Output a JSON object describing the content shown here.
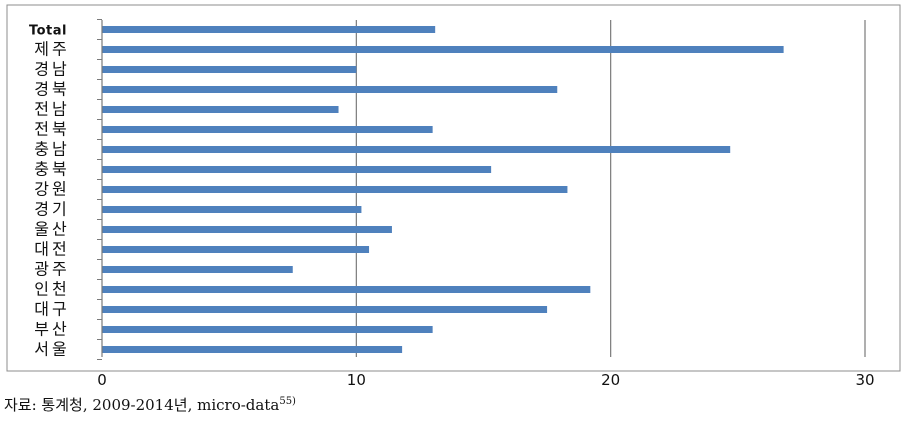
{
  "chart_data": {
    "type": "bar",
    "orientation": "horizontal",
    "title": "",
    "xlabel": "",
    "ylabel": "",
    "categories": [
      "Total",
      "제주",
      "경남",
      "경북",
      "전남",
      "전북",
      "충남",
      "충북",
      "강원",
      "경기",
      "울산",
      "대전",
      "광주",
      "인천",
      "대구",
      "부산",
      "서울"
    ],
    "values": [
      13.1,
      26.8,
      10.0,
      17.9,
      9.3,
      13.0,
      24.7,
      15.3,
      18.3,
      10.2,
      11.4,
      10.5,
      7.5,
      19.2,
      17.5,
      13.0,
      11.8
    ],
    "xlim": [
      0,
      30
    ],
    "xticks": [
      0,
      10,
      20,
      30
    ],
    "grid": "vertical major gridlines",
    "bar_color": "#4f81bd",
    "legend": "none"
  },
  "source": {
    "text": "자료: 통계청, 2009-2014년, micro-data",
    "footnote": "55)"
  }
}
